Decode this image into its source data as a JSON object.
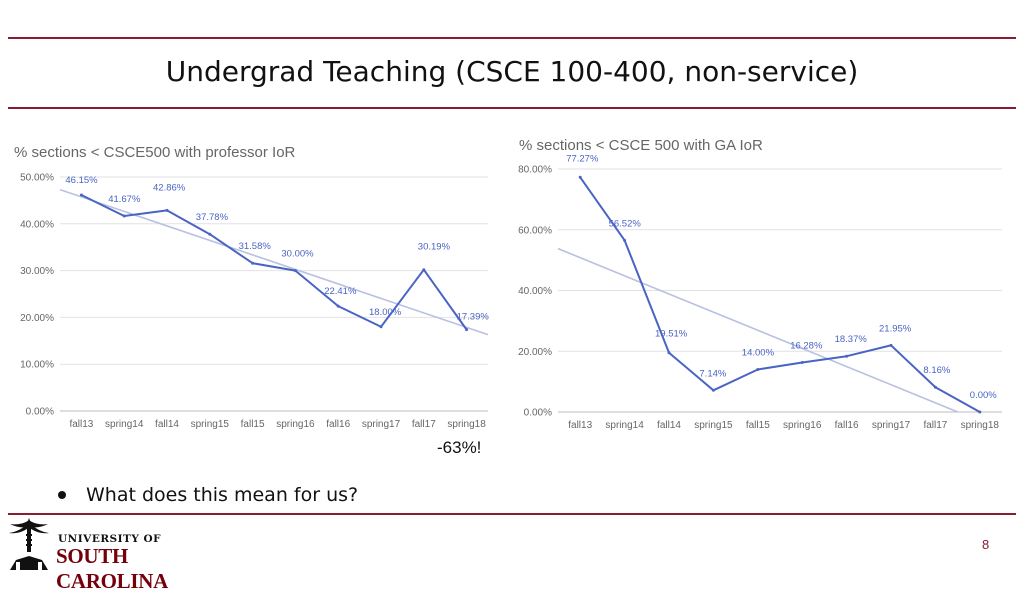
{
  "slide": {
    "title": "Undergrad Teaching (CSCE 100-400, non-service)",
    "note": "-63%!",
    "bullet": "What does this mean for us?",
    "page_number": "8",
    "logo": {
      "line1": "UNIVERSITY OF",
      "line2": "SOUTH CAROLINA"
    }
  },
  "colors": {
    "accent": "#8a1c32",
    "series": "#4a64c4",
    "trend": "#b9c1e2",
    "grid": "#e2e2e2",
    "logo": "#73000a"
  },
  "chart_data": [
    {
      "type": "line",
      "title": "% sections < CSCE500 with professor IoR",
      "categories": [
        "fall13",
        "spring14",
        "fall14",
        "spring15",
        "fall15",
        "spring16",
        "fall16",
        "spring17",
        "fall17",
        "spring18"
      ],
      "values": [
        46.15,
        41.67,
        42.86,
        37.78,
        31.58,
        30.0,
        22.41,
        18.0,
        30.19,
        17.39
      ],
      "labels": [
        "46.15%",
        "41.67%",
        "42.86%",
        "37.78%",
        "31.58%",
        "30.00%",
        "22.41%",
        "18.00%",
        "30.19%",
        "17.39%"
      ],
      "yticks": [
        0,
        10,
        20,
        30,
        40,
        50
      ],
      "ytick_labels": [
        "0.00%",
        "10.00%",
        "20.00%",
        "30.00%",
        "40.00%",
        "50.00%"
      ],
      "ylim": [
        0,
        50
      ],
      "trendline": true,
      "grid": true
    },
    {
      "type": "line",
      "title": "% sections < CSCE 500 with GA IoR",
      "categories": [
        "fall13",
        "spring14",
        "fall14",
        "spring15",
        "fall15",
        "spring16",
        "fall16",
        "spring17",
        "fall17",
        "spring18"
      ],
      "values": [
        77.27,
        56.52,
        19.51,
        7.14,
        14.0,
        16.28,
        18.37,
        21.95,
        8.16,
        0.0
      ],
      "labels": [
        "77.27%",
        "56.52%",
        "19.51%",
        "7.14%",
        "14.00%",
        "16.28%",
        "18.37%",
        "21.95%",
        "8.16%",
        "0.00%"
      ],
      "yticks": [
        0,
        20,
        40,
        60,
        80
      ],
      "ytick_labels": [
        "0.00%",
        "20.00%",
        "40.00%",
        "60.00%",
        "80.00%"
      ],
      "ylim": [
        0,
        80
      ],
      "trendline": true,
      "grid": true
    }
  ]
}
